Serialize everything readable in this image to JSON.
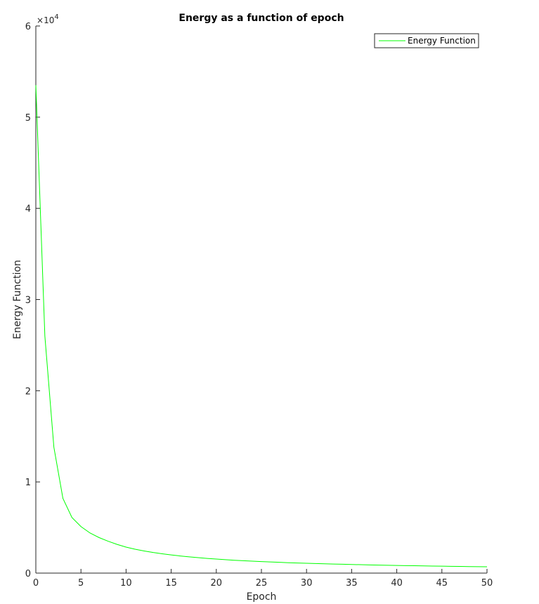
{
  "chart_data": {
    "type": "line",
    "title": "Energy as a function of epoch",
    "xlabel": "Epoch",
    "ylabel": "Energy Function",
    "y_exponent": {
      "base": "10",
      "power": "4"
    },
    "xlim": [
      0,
      50
    ],
    "ylim": [
      0,
      60000
    ],
    "x_ticks": [
      0,
      5,
      10,
      15,
      20,
      25,
      30,
      35,
      40,
      45,
      50
    ],
    "y_ticks": [
      0,
      10000,
      20000,
      30000,
      40000,
      50000,
      60000
    ],
    "y_tick_labels": [
      "0",
      "1",
      "2",
      "3",
      "4",
      "5",
      "6"
    ],
    "grid": false,
    "legend_position": "top-right",
    "series": [
      {
        "name": "Energy Function",
        "color": "#00ff00",
        "x": [
          0,
          1,
          2,
          3,
          4,
          5,
          6,
          7,
          8,
          9,
          10,
          11,
          12,
          13,
          14,
          15,
          16,
          17,
          18,
          19,
          20,
          21,
          22,
          23,
          24,
          25,
          26,
          27,
          28,
          29,
          30,
          31,
          32,
          33,
          34,
          35,
          36,
          37,
          38,
          39,
          40,
          41,
          42,
          43,
          44,
          45,
          46,
          47,
          48,
          49,
          50
        ],
        "y": [
          53500,
          26000,
          13800,
          8200,
          6100,
          5100,
          4400,
          3900,
          3500,
          3150,
          2850,
          2620,
          2430,
          2260,
          2120,
          1990,
          1880,
          1780,
          1690,
          1610,
          1540,
          1470,
          1410,
          1360,
          1310,
          1260,
          1220,
          1180,
          1140,
          1110,
          1080,
          1050,
          1020,
          995,
          970,
          945,
          920,
          900,
          880,
          860,
          840,
          820,
          805,
          790,
          775,
          760,
          745,
          730,
          715,
          700,
          690
        ]
      }
    ]
  }
}
